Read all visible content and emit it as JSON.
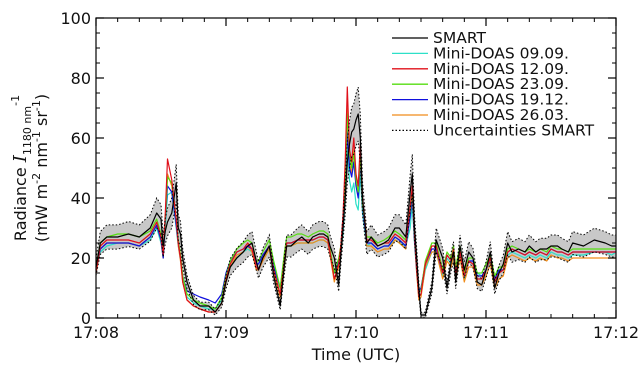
{
  "chart_data": {
    "type": "line",
    "title": "",
    "xlabel": "Time (UTC)",
    "ylabel": {
      "line1_prefix": "Radiance ",
      "symbol": "I",
      "subscript": "1180 nm",
      "superscript": "-1",
      "line2_part1": "(mW m",
      "sup1": "-2",
      "line2_part2": " nm",
      "sup2": "-1",
      "line2_part3": " sr",
      "sup3": "-1",
      "line2_part4": ")"
    },
    "xlim": [
      0,
      240
    ],
    "ylim": [
      0,
      100
    ],
    "x_ticks": [
      {
        "value": 0,
        "label": "17:08"
      },
      {
        "value": 60,
        "label": "17:09"
      },
      {
        "value": 120,
        "label": "17:10"
      },
      {
        "value": 180,
        "label": "17:11"
      },
      {
        "value": 240,
        "label": "17:12"
      }
    ],
    "y_ticks": [
      {
        "value": 0,
        "label": "0"
      },
      {
        "value": 20,
        "label": "20"
      },
      {
        "value": 40,
        "label": "40"
      },
      {
        "value": 60,
        "label": "60"
      },
      {
        "value": 80,
        "label": "80"
      },
      {
        "value": 100,
        "label": "100"
      }
    ],
    "grid": false,
    "legend_position": "top-right",
    "uncertainty_fraction": 0.12,
    "base_x": [
      0,
      2,
      5,
      10,
      15,
      20,
      25,
      28,
      30,
      31,
      32,
      33,
      35,
      37,
      38,
      39,
      40,
      42,
      45,
      48,
      52,
      55,
      58,
      60,
      62,
      65,
      68,
      70,
      72,
      74,
      75,
      77,
      80,
      82,
      85,
      87,
      88,
      90,
      93,
      95,
      98,
      100,
      103,
      105,
      107,
      108,
      110,
      112,
      113,
      114,
      115,
      116,
      117,
      118,
      119,
      120,
      121,
      122,
      123,
      125,
      127,
      130,
      133,
      135,
      138,
      140,
      143,
      145,
      146,
      147,
      148,
      149,
      150,
      152,
      155,
      157,
      160,
      162,
      164,
      165,
      166,
      168,
      170,
      172,
      174,
      176,
      178,
      180,
      182,
      184,
      186,
      188,
      190,
      192,
      195,
      198,
      200,
      203,
      205,
      208,
      210,
      213,
      215,
      218,
      220,
      225,
      230,
      235,
      238,
      240
    ],
    "series": [
      {
        "name": "SMART",
        "color": "#000000",
        "dash": "solid",
        "values": [
          17,
          25,
          27,
          27,
          28,
          27,
          30,
          35,
          33,
          24,
          29,
          32,
          35,
          45,
          30,
          28,
          20,
          12,
          6,
          4,
          4,
          2,
          5,
          12,
          17,
          20,
          22,
          24,
          25,
          19,
          16,
          20,
          24,
          14,
          4,
          18,
          24,
          24,
          26,
          27,
          25,
          27,
          28,
          28,
          27,
          24,
          20,
          11,
          21,
          30,
          40,
          52,
          58,
          62,
          63,
          66,
          68,
          60,
          40,
          25,
          27,
          24,
          25,
          26,
          30,
          30,
          27,
          42,
          48,
          30,
          20,
          10,
          1,
          1,
          10,
          26,
          20,
          10,
          19,
          22,
          12,
          24,
          16,
          22,
          20,
          12,
          11,
          16,
          22,
          10,
          15,
          18,
          25,
          22,
          23,
          22,
          24,
          22,
          23,
          23,
          24,
          24,
          23,
          22,
          25,
          24,
          26,
          25,
          24,
          24
        ]
      },
      {
        "name": "Mini-DOAS 09.09.",
        "color": "#2de0c8",
        "dash": "solid",
        "values": [
          16,
          22,
          24,
          25,
          25,
          24,
          26,
          30,
          25,
          20,
          30,
          41,
          42,
          30,
          24,
          20,
          13,
          7,
          5,
          4,
          3,
          3,
          6,
          13,
          17,
          20,
          22,
          23,
          22,
          18,
          18,
          20,
          23,
          18,
          10,
          20,
          24,
          24,
          25,
          25,
          25,
          25,
          26,
          26,
          25,
          22,
          15,
          18,
          22,
          28,
          40,
          56,
          46,
          42,
          45,
          38,
          36,
          48,
          35,
          24,
          25,
          23,
          24,
          24,
          26,
          25,
          24,
          30,
          38,
          25,
          15,
          8,
          8,
          16,
          22,
          22,
          14,
          20,
          18,
          22,
          16,
          22,
          13,
          19,
          19,
          15,
          14,
          16,
          19,
          13,
          16,
          16,
          21,
          22,
          21,
          20,
          21,
          20,
          21,
          20,
          22,
          21,
          21,
          20,
          21,
          21,
          22,
          22,
          21,
          22
        ]
      },
      {
        "name": "Mini-DOAS 12.09.",
        "color": "#e0101a",
        "dash": "solid",
        "values": [
          15,
          24,
          26,
          26,
          26,
          25,
          28,
          32,
          27,
          21,
          35,
          53,
          46,
          33,
          25,
          20,
          12,
          6,
          4,
          3,
          2,
          2,
          5,
          13,
          18,
          22,
          23,
          25,
          23,
          17,
          16,
          20,
          24,
          16,
          8,
          19,
          25,
          25,
          26,
          26,
          26,
          26,
          27,
          27,
          26,
          22,
          13,
          18,
          24,
          34,
          52,
          77,
          56,
          52,
          60,
          48,
          44,
          58,
          40,
          26,
          26,
          24,
          25,
          25,
          28,
          27,
          25,
          37,
          44,
          28,
          16,
          7,
          8,
          18,
          24,
          24,
          15,
          21,
          19,
          23,
          15,
          22,
          14,
          19,
          18,
          13,
          13,
          16,
          20,
          12,
          15,
          16,
          22,
          23,
          22,
          21,
          22,
          21,
          22,
          21,
          23,
          22,
          22,
          21,
          22,
          22,
          22,
          22,
          22,
          22
        ]
      },
      {
        "name": "Mini-DOAS 23.09.",
        "color": "#55dd10",
        "dash": "solid",
        "values": [
          17,
          25,
          27,
          28,
          28,
          27,
          29,
          33,
          28,
          22,
          33,
          47,
          45,
          33,
          26,
          21,
          14,
          8,
          6,
          5,
          4,
          3,
          7,
          14,
          19,
          23,
          25,
          26,
          25,
          19,
          19,
          22,
          26,
          19,
          10,
          22,
          27,
          27,
          28,
          28,
          27,
          28,
          29,
          29,
          28,
          23,
          15,
          20,
          24,
          31,
          45,
          68,
          55,
          50,
          55,
          46,
          42,
          54,
          38,
          27,
          27,
          25,
          26,
          27,
          29,
          28,
          26,
          36,
          42,
          28,
          17,
          9,
          9,
          19,
          25,
          25,
          16,
          22,
          20,
          24,
          17,
          24,
          15,
          20,
          20,
          15,
          15,
          18,
          21,
          14,
          17,
          17,
          23,
          24,
          23,
          22,
          23,
          22,
          23,
          22,
          24,
          23,
          23,
          22,
          23,
          23,
          23,
          23,
          23,
          23
        ]
      },
      {
        "name": "Mini-DOAS 19.12.",
        "color": "#1010dd",
        "dash": "solid",
        "values": [
          16,
          23,
          25,
          25,
          25,
          24,
          27,
          31,
          26,
          20,
          32,
          44,
          42,
          31,
          25,
          20,
          14,
          9,
          8,
          7,
          6,
          5,
          8,
          15,
          19,
          22,
          23,
          24,
          23,
          18,
          18,
          21,
          24,
          17,
          10,
          20,
          25,
          25,
          26,
          26,
          26,
          26,
          27,
          27,
          26,
          22,
          15,
          19,
          23,
          30,
          42,
          62,
          50,
          47,
          52,
          44,
          40,
          52,
          37,
          25,
          25,
          23,
          24,
          24,
          27,
          26,
          24,
          34,
          40,
          26,
          16,
          9,
          10,
          18,
          23,
          23,
          15,
          21,
          19,
          22,
          16,
          22,
          14,
          19,
          19,
          14,
          14,
          16,
          20,
          13,
          16,
          16,
          22,
          23,
          22,
          21,
          22,
          21,
          22,
          21,
          23,
          22,
          22,
          21,
          22,
          22,
          22,
          22,
          22,
          22
        ]
      },
      {
        "name": "Mini-DOAS 26.03.",
        "color": "#f08c1a",
        "dash": "solid",
        "values": [
          15,
          23,
          25,
          25,
          25,
          24,
          27,
          31,
          26,
          20,
          32,
          48,
          44,
          31,
          24,
          19,
          12,
          6,
          4,
          3,
          2,
          2,
          5,
          12,
          17,
          21,
          22,
          24,
          22,
          16,
          16,
          19,
          23,
          15,
          7,
          18,
          24,
          24,
          25,
          25,
          25,
          25,
          26,
          26,
          25,
          21,
          12,
          17,
          22,
          30,
          46,
          70,
          52,
          48,
          56,
          45,
          41,
          55,
          38,
          24,
          24,
          22,
          23,
          23,
          26,
          25,
          23,
          35,
          41,
          26,
          15,
          6,
          7,
          17,
          22,
          22,
          13,
          19,
          17,
          21,
          13,
          20,
          12,
          17,
          17,
          11,
          11,
          14,
          18,
          10,
          13,
          14,
          20,
          21,
          20,
          19,
          20,
          19,
          20,
          19,
          21,
          20,
          20,
          19,
          20,
          20,
          20,
          20,
          20,
          20
        ]
      }
    ],
    "uncertainty": {
      "name": "Uncertainties SMART",
      "color": "#000000",
      "fill": "#c8c8c8",
      "dash": "dotted"
    }
  }
}
